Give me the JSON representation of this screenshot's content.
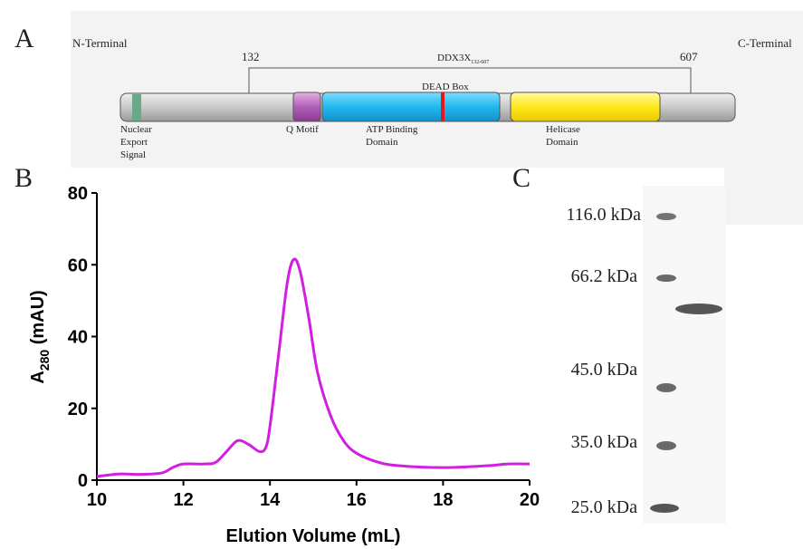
{
  "panel_a": {
    "letter": "A",
    "n_terminal": "N-Terminal",
    "c_terminal": "C-Terminal",
    "start": "132",
    "end": "607",
    "construct": "DDX3X",
    "construct_sub": "132-607",
    "dead_box": "DEAD Box",
    "nes": [
      "Nuclear",
      "Export",
      "Signal"
    ],
    "q_motif": "Q Motif",
    "atp": [
      "ATP Binding",
      "Domain"
    ],
    "helicase": [
      "Helicase",
      "Domain"
    ]
  },
  "chart_data": {
    "type": "line",
    "letter": "B",
    "xlabel": "Elution Volume (mL)",
    "ylabel": [
      "A",
      "280",
      " (mAU)"
    ],
    "x": [
      10,
      10.5,
      11,
      11.5,
      11.75,
      12,
      12.5,
      12.75,
      13,
      13.25,
      13.5,
      13.75,
      13.9,
      14,
      14.2,
      14.4,
      14.55,
      14.7,
      14.9,
      15.1,
      15.4,
      15.7,
      16,
      16.5,
      17,
      18,
      19,
      19.5,
      20
    ],
    "series": [
      {
        "color": "#d21ee0",
        "values": [
          1,
          1.7,
          1.6,
          2,
          3.5,
          4.5,
          4.5,
          5,
          8,
          11,
          10,
          8,
          9,
          15,
          35,
          55,
          61.5,
          58,
          45,
          30,
          18,
          11,
          7.5,
          5,
          4,
          3.5,
          4,
          4.5,
          4.5
        ]
      }
    ],
    "xlim": [
      10,
      20
    ],
    "ylim": [
      0,
      80
    ],
    "xticks": [
      10,
      12,
      14,
      16,
      18,
      20
    ],
    "yticks": [
      0,
      20,
      40,
      60,
      80
    ]
  },
  "panel_c": {
    "letter": "C",
    "markers": [
      "116.0 kDa",
      "66.2 kDa",
      "45.0 kDa",
      "35.0 kDa",
      "25.0 kDa"
    ]
  }
}
